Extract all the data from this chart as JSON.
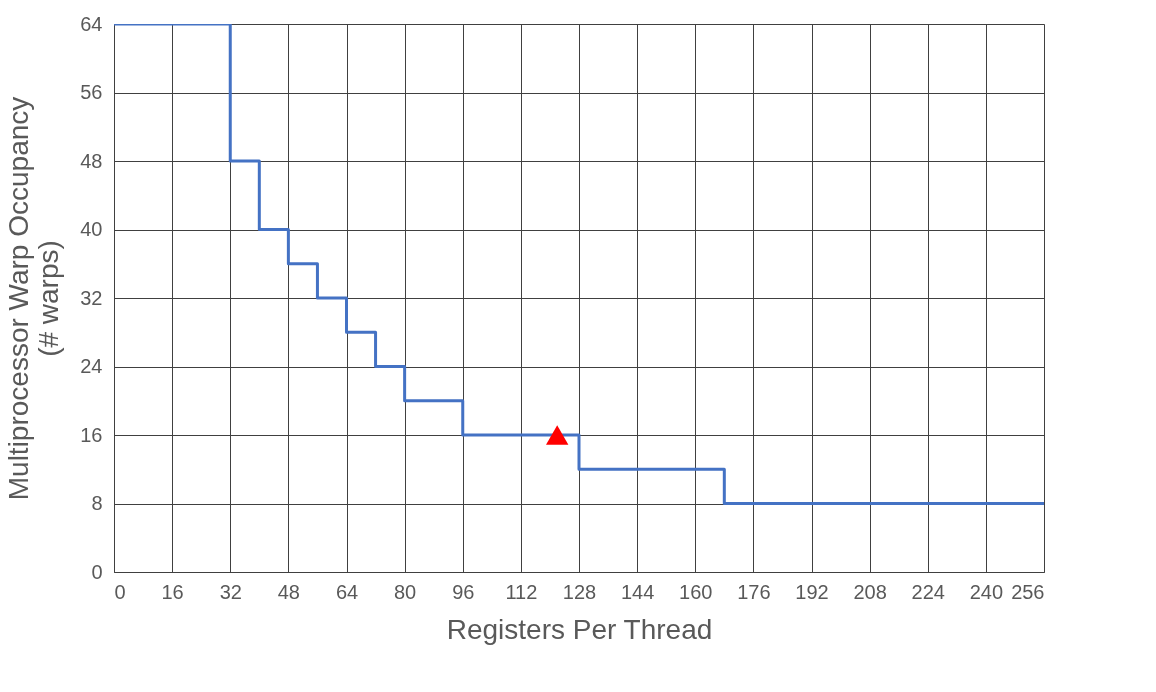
{
  "chart_data": {
    "type": "step",
    "xlabel": "Registers Per Thread",
    "ylabel": "Multiprocessor Warp Occupancy\n(# warps)",
    "xlim": [
      0,
      256
    ],
    "xticks": [
      0,
      16,
      32,
      48,
      64,
      80,
      96,
      112,
      128,
      144,
      160,
      176,
      192,
      208,
      224,
      240,
      256
    ],
    "ylim": [
      0,
      64
    ],
    "yticks": [
      0,
      8,
      16,
      24,
      32,
      40,
      48,
      56,
      64
    ],
    "grid": true,
    "series": [
      {
        "color": "#4472c4",
        "marker": "none",
        "line_style": "solid",
        "x": [
          0,
          32,
          40,
          48,
          56,
          64,
          72,
          80,
          96,
          128,
          168,
          256
        ],
        "values": [
          64,
          48,
          40,
          36,
          32,
          28,
          24,
          20,
          16,
          12,
          8,
          8
        ]
      },
      {
        "type": "scatter",
        "color": "#ff0000",
        "marker": "triangle",
        "x": [
          122
        ],
        "values": [
          16
        ]
      }
    ]
  }
}
